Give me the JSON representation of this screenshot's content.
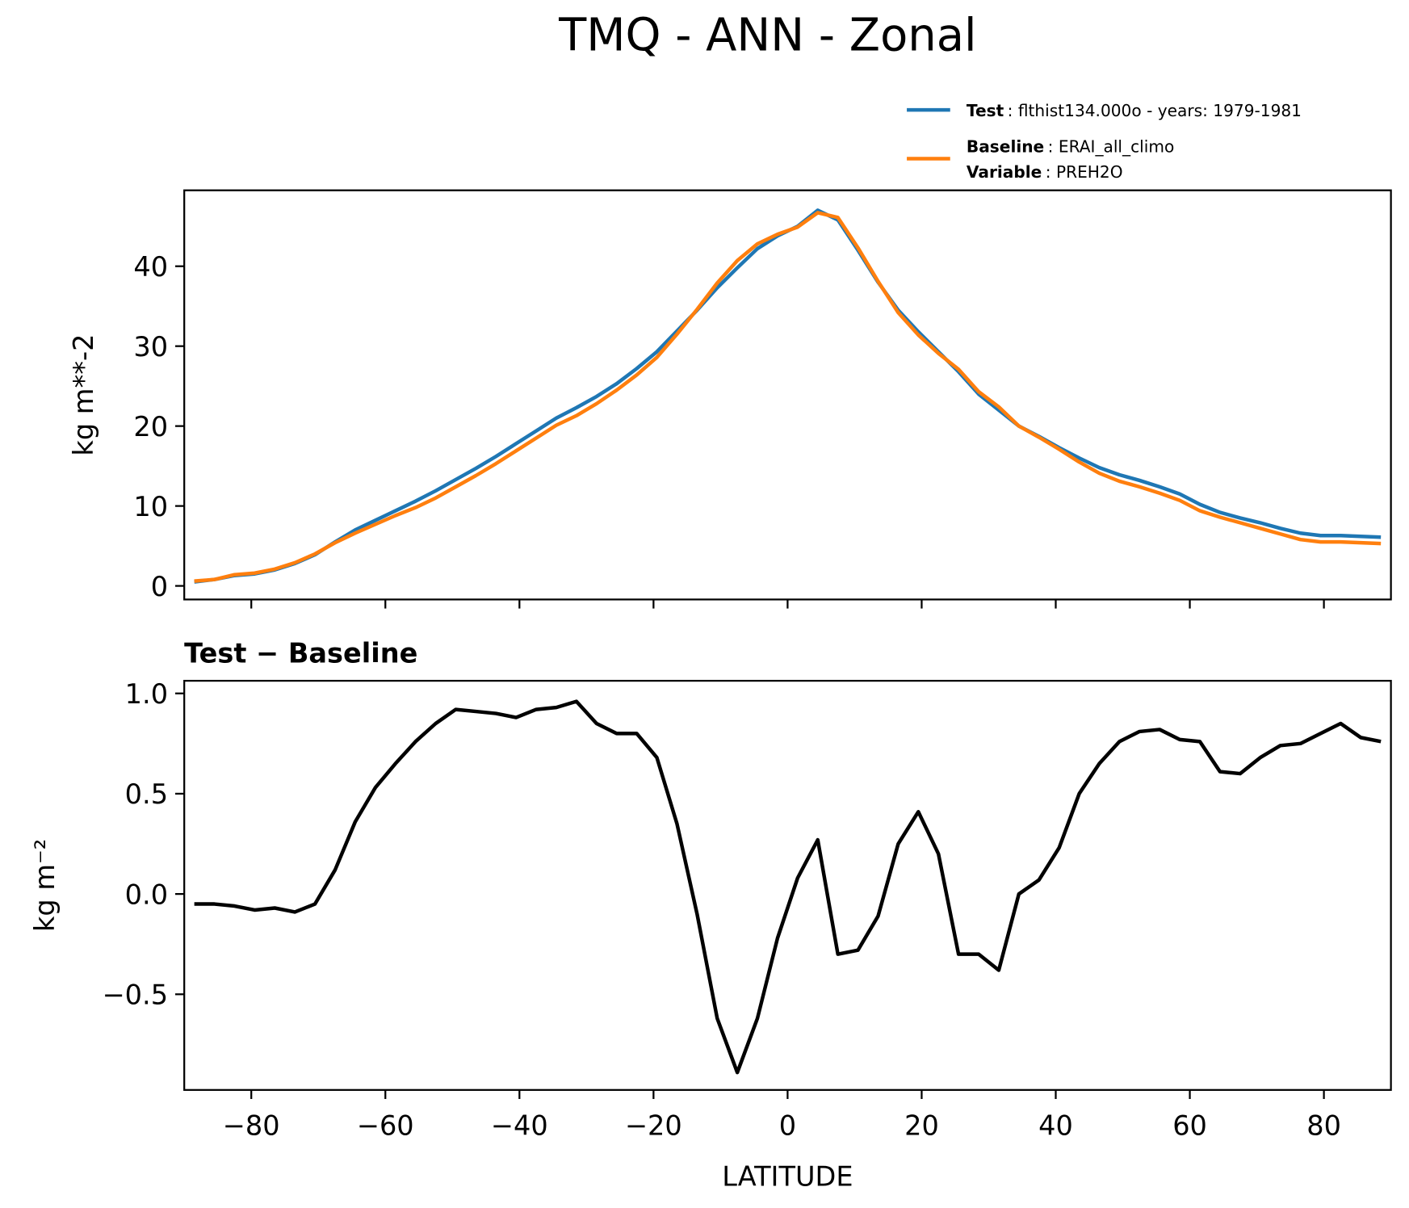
{
  "chart_data": [
    {
      "type": "line",
      "title": "TMQ - ANN - Zonal",
      "ylabel": "kg m**-2",
      "x": [
        -88.5,
        -85.5,
        -82.5,
        -79.5,
        -76.5,
        -73.5,
        -70.5,
        -67.5,
        -64.5,
        -61.5,
        -58.5,
        -55.5,
        -52.5,
        -49.5,
        -46.5,
        -43.5,
        -40.5,
        -37.5,
        -34.5,
        -31.5,
        -28.5,
        -25.5,
        -22.5,
        -19.5,
        -16.5,
        -13.5,
        -10.5,
        -7.5,
        -4.5,
        -1.5,
        1.5,
        4.5,
        7.5,
        10.5,
        13.5,
        16.5,
        19.5,
        22.5,
        25.5,
        28.5,
        31.5,
        34.5,
        37.5,
        40.5,
        43.5,
        46.5,
        49.5,
        52.5,
        55.5,
        58.5,
        61.5,
        64.5,
        67.5,
        70.5,
        73.5,
        76.5,
        79.5,
        82.5,
        85.5,
        88.5
      ],
      "series": [
        {
          "name": "Test",
          "detail": ": flthist134.000o - years: 1979-1981",
          "color": "#1f77b4",
          "values": [
            0.5,
            0.8,
            1.3,
            1.5,
            2.0,
            2.8,
            3.9,
            5.5,
            7.0,
            8.2,
            9.4,
            10.6,
            11.9,
            13.3,
            14.7,
            16.2,
            17.8,
            19.4,
            21.0,
            22.3,
            23.7,
            25.3,
            27.2,
            29.3,
            31.9,
            34.5,
            37.3,
            39.8,
            42.2,
            43.8,
            45.0,
            47.0,
            45.8,
            42.0,
            38.0,
            34.5,
            31.8,
            29.3,
            26.8,
            24.0,
            22.0,
            20.0,
            18.7,
            17.3,
            16.0,
            14.8,
            13.9,
            13.2,
            12.4,
            11.5,
            10.2,
            9.2,
            8.5,
            7.9,
            7.2,
            6.6,
            6.3,
            6.3,
            6.2,
            6.1
          ]
        },
        {
          "name": "Baseline",
          "detail": ": ERAI_all_climo",
          "extra_name": "Variable",
          "extra_detail": ": PREH2O",
          "color": "#ff7f0e",
          "values": [
            0.6,
            0.8,
            1.4,
            1.6,
            2.1,
            2.9,
            4.0,
            5.4,
            6.6,
            7.7,
            8.8,
            9.8,
            11.0,
            12.4,
            13.8,
            15.3,
            16.9,
            18.5,
            20.1,
            21.3,
            22.8,
            24.5,
            26.4,
            28.6,
            31.5,
            34.6,
            37.9,
            40.7,
            42.8,
            44.0,
            44.9,
            46.7,
            46.1,
            42.3,
            38.1,
            34.2,
            31.4,
            29.1,
            27.1,
            24.3,
            22.4,
            20.0,
            18.6,
            17.1,
            15.5,
            14.1,
            13.1,
            12.4,
            11.6,
            10.7,
            9.4,
            8.6,
            7.9,
            7.2,
            6.5,
            5.8,
            5.5,
            5.5,
            5.4,
            5.3
          ]
        }
      ],
      "xlim": [
        -90,
        90
      ],
      "xticks": [
        -80,
        -60,
        -40,
        -20,
        0,
        20,
        40,
        60,
        80
      ],
      "ylim": [
        -1.7,
        49.5
      ],
      "yticks": [
        0,
        10,
        20,
        30,
        40
      ],
      "legend": "upper right"
    },
    {
      "type": "line",
      "title": "Test − Baseline",
      "xlabel": "LATITUDE",
      "ylabel": "kg m⁻²",
      "x": [
        -88.5,
        -85.5,
        -82.5,
        -79.5,
        -76.5,
        -73.5,
        -70.5,
        -67.5,
        -64.5,
        -61.5,
        -58.5,
        -55.5,
        -52.5,
        -49.5,
        -46.5,
        -43.5,
        -40.5,
        -37.5,
        -34.5,
        -31.5,
        -28.5,
        -25.5,
        -22.5,
        -19.5,
        -16.5,
        -13.5,
        -10.5,
        -7.5,
        -4.5,
        -1.5,
        1.5,
        4.5,
        7.5,
        10.5,
        13.5,
        16.5,
        19.5,
        22.5,
        25.5,
        28.5,
        31.5,
        34.5,
        37.5,
        40.5,
        43.5,
        46.5,
        49.5,
        52.5,
        55.5,
        58.5,
        61.5,
        64.5,
        67.5,
        70.5,
        73.5,
        76.5,
        79.5,
        82.5,
        85.5,
        88.5
      ],
      "series": [
        {
          "color": "#000000",
          "values": [
            -0.05,
            -0.05,
            -0.06,
            -0.08,
            -0.07,
            -0.09,
            -0.05,
            0.12,
            0.36,
            0.53,
            0.65,
            0.76,
            0.85,
            0.92,
            0.91,
            0.9,
            0.88,
            0.92,
            0.93,
            0.96,
            0.85,
            0.8,
            0.8,
            0.68,
            0.35,
            -0.1,
            -0.62,
            -0.89,
            -0.62,
            -0.22,
            0.08,
            0.27,
            -0.3,
            -0.28,
            -0.11,
            0.25,
            0.41,
            0.2,
            -0.3,
            -0.3,
            -0.38,
            0.0,
            0.07,
            0.23,
            0.5,
            0.65,
            0.76,
            0.81,
            0.82,
            0.77,
            0.76,
            0.61,
            0.6,
            0.68,
            0.74,
            0.75,
            0.8,
            0.85,
            0.78,
            0.76
          ]
        }
      ],
      "xlim": [
        -90,
        90
      ],
      "xticks": [
        {
          "value": -80,
          "label": "−80"
        },
        {
          "value": -60,
          "label": "−60"
        },
        {
          "value": -40,
          "label": "−40"
        },
        {
          "value": -20,
          "label": "−20"
        },
        0,
        20,
        40,
        60,
        80
      ],
      "ylim": [
        -0.977,
        1.063
      ],
      "yticks": [
        {
          "value": 1,
          "label": "1.0"
        },
        0.5,
        {
          "value": 0,
          "label": "0.0"
        },
        {
          "value": -0.5,
          "label": "−0.5"
        }
      ]
    }
  ]
}
